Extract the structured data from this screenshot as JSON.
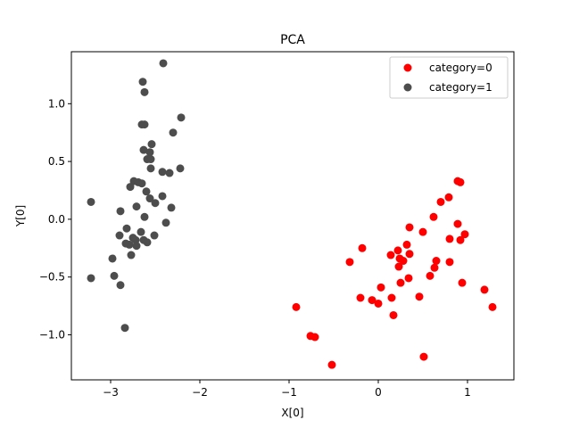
{
  "chart_data": {
    "type": "scatter",
    "title": "PCA",
    "xlabel": "X[0]",
    "ylabel": "Y[0]",
    "xlim": [
      -3.44,
      1.52
    ],
    "ylim": [
      -1.39,
      1.45
    ],
    "xticks": [
      -3,
      -2,
      -1,
      0,
      1
    ],
    "xtick_labels": [
      "−3",
      "−2",
      "−1",
      "0",
      "1"
    ],
    "yticks": [
      -1.0,
      -0.5,
      0.0,
      0.5,
      1.0
    ],
    "ytick_labels": [
      "−1.0",
      "−0.5",
      "0.0",
      "0.5",
      "1.0"
    ],
    "grid": false,
    "legend_position": "top-right",
    "series": [
      {
        "name": "category=0",
        "color": "#ff0000",
        "points": [
          [
            0.89,
            0.33
          ],
          [
            0.92,
            0.32
          ],
          [
            0.79,
            0.19
          ],
          [
            0.7,
            0.15
          ],
          [
            0.62,
            0.02
          ],
          [
            0.89,
            -0.04
          ],
          [
            0.97,
            -0.13
          ],
          [
            0.92,
            -0.18
          ],
          [
            0.8,
            -0.17
          ],
          [
            0.35,
            -0.07
          ],
          [
            0.5,
            -0.11
          ],
          [
            0.22,
            -0.27
          ],
          [
            0.32,
            -0.22
          ],
          [
            0.35,
            -0.3
          ],
          [
            0.14,
            -0.31
          ],
          [
            0.24,
            -0.34
          ],
          [
            0.28,
            -0.36
          ],
          [
            0.23,
            -0.41
          ],
          [
            -0.18,
            -0.25
          ],
          [
            -0.32,
            -0.37
          ],
          [
            0.65,
            -0.36
          ],
          [
            0.63,
            -0.42
          ],
          [
            0.8,
            -0.37
          ],
          [
            0.58,
            -0.49
          ],
          [
            0.34,
            -0.51
          ],
          [
            0.25,
            -0.55
          ],
          [
            0.03,
            -0.59
          ],
          [
            -0.2,
            -0.68
          ],
          [
            -0.07,
            -0.7
          ],
          [
            0.0,
            -0.73
          ],
          [
            0.15,
            -0.68
          ],
          [
            0.46,
            -0.67
          ],
          [
            0.94,
            -0.55
          ],
          [
            1.19,
            -0.61
          ],
          [
            1.28,
            -0.76
          ],
          [
            0.17,
            -0.83
          ],
          [
            -0.92,
            -0.76
          ],
          [
            -0.76,
            -1.01
          ],
          [
            -0.71,
            -1.02
          ],
          [
            -0.52,
            -1.26
          ],
          [
            0.51,
            -1.19
          ]
        ]
      },
      {
        "name": "category=1",
        "color": "#4d4d4d",
        "points": [
          [
            -2.41,
            1.35
          ],
          [
            -2.64,
            1.19
          ],
          [
            -2.62,
            1.1
          ],
          [
            -2.21,
            0.88
          ],
          [
            -2.65,
            0.82
          ],
          [
            -2.62,
            0.82
          ],
          [
            -2.3,
            0.75
          ],
          [
            -2.54,
            0.65
          ],
          [
            -2.63,
            0.6
          ],
          [
            -2.56,
            0.58
          ],
          [
            -2.59,
            0.52
          ],
          [
            -2.55,
            0.52
          ],
          [
            -2.55,
            0.44
          ],
          [
            -2.42,
            0.41
          ],
          [
            -2.34,
            0.4
          ],
          [
            -2.22,
            0.44
          ],
          [
            -2.74,
            0.33
          ],
          [
            -2.69,
            0.32
          ],
          [
            -2.65,
            0.31
          ],
          [
            -2.78,
            0.28
          ],
          [
            -2.6,
            0.24
          ],
          [
            -2.56,
            0.18
          ],
          [
            -2.42,
            0.2
          ],
          [
            -2.5,
            0.14
          ],
          [
            -2.71,
            0.11
          ],
          [
            -2.62,
            0.02
          ],
          [
            -2.32,
            0.1
          ],
          [
            -3.22,
            0.15
          ],
          [
            -2.89,
            0.07
          ],
          [
            -2.38,
            -0.03
          ],
          [
            -2.82,
            -0.08
          ],
          [
            -2.66,
            -0.11
          ],
          [
            -2.9,
            -0.14
          ],
          [
            -2.75,
            -0.16
          ],
          [
            -2.63,
            -0.18
          ],
          [
            -2.59,
            -0.2
          ],
          [
            -2.51,
            -0.14
          ],
          [
            -2.72,
            -0.18
          ],
          [
            -2.83,
            -0.21
          ],
          [
            -2.79,
            -0.22
          ],
          [
            -2.71,
            -0.23
          ],
          [
            -2.77,
            -0.31
          ],
          [
            -2.98,
            -0.34
          ],
          [
            -2.96,
            -0.49
          ],
          [
            -3.22,
            -0.51
          ],
          [
            -2.89,
            -0.57
          ],
          [
            -2.84,
            -0.94
          ]
        ]
      }
    ]
  }
}
